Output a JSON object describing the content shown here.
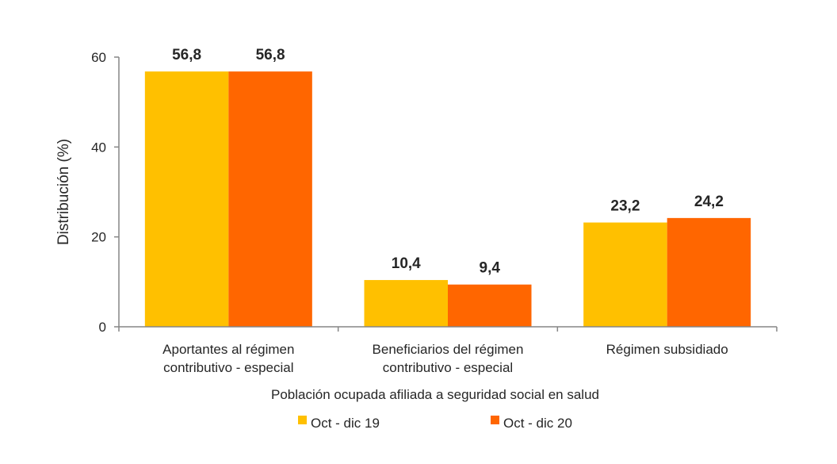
{
  "chart_data": {
    "type": "bar",
    "title": "",
    "xlabel": "Población ocupada afiliada a seguridad social en salud",
    "ylabel": "Distribución (%)",
    "ylim": [
      0,
      60
    ],
    "yticks": [
      0,
      20,
      40,
      60
    ],
    "grid": false,
    "legend_placement": "bottom",
    "categories": [
      [
        "Aportantes al régimen",
        "contributivo - especial"
      ],
      [
        "Beneficiarios del régimen",
        "contributivo - especial"
      ],
      [
        "Régimen subsidiado"
      ]
    ],
    "series": [
      {
        "name": "Oct - dic 19",
        "color": "#FFC000",
        "values": [
          56.8,
          10.4,
          23.2
        ],
        "labels": [
          "56,8",
          "10,4",
          "23,2"
        ]
      },
      {
        "name": "Oct - dic 20",
        "color": "#FF6600",
        "values": [
          56.8,
          9.4,
          24.2
        ],
        "labels": [
          "56,8",
          "9,4",
          "24,2"
        ]
      }
    ]
  }
}
